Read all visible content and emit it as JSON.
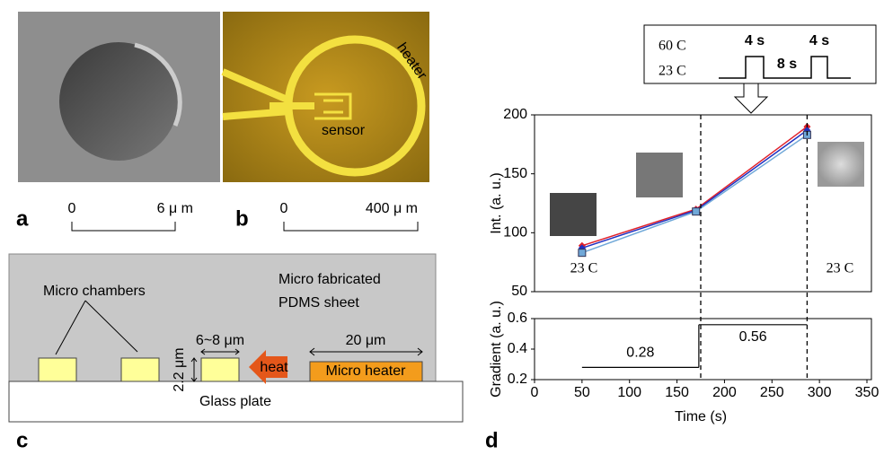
{
  "panel_a": {
    "label": "a",
    "scale": {
      "start": "0",
      "end": "6 μ m"
    }
  },
  "panel_b": {
    "label": "b",
    "scale": {
      "start": "0",
      "end": "400 μ m"
    },
    "heater": "heater",
    "sensor": "sensor"
  },
  "panel_c": {
    "label": "c",
    "sheet": [
      "Micro fabricated",
      "PDMS sheet"
    ],
    "chambers": "Micro chambers",
    "height": "2.2 μm",
    "width": "6~8 μm",
    "heat": "heat",
    "heater_width": "20 μm",
    "heater": "Micro heater",
    "glass": "Glass plate"
  },
  "panel_d": {
    "label": "d",
    "pulse": {
      "high": "60 C",
      "low": "23 C",
      "on1": "4 s",
      "off": "8 s",
      "on2": "4 s"
    }
  },
  "chart_data": [
    {
      "type": "line",
      "ylabel": "Int. (a. u.)",
      "x": [
        50,
        170,
        287
      ],
      "series": [
        {
          "color": "#e0202a",
          "values": [
            89,
            120,
            190
          ]
        },
        {
          "color": "#2030c0",
          "values": [
            87,
            119,
            187
          ]
        },
        {
          "color": "#70a8d8",
          "values": [
            83,
            118,
            183
          ]
        }
      ],
      "xlim": [
        0,
        350
      ],
      "ylim": [
        50,
        200
      ],
      "yticks": [
        50,
        100,
        150,
        200
      ],
      "vlines": [
        175,
        287
      ],
      "annotations": [
        "23 C",
        "23 C"
      ]
    },
    {
      "type": "step",
      "ylabel": "Gradient (a. u.)",
      "xlabel": "Time (s)",
      "segments": [
        {
          "x": [
            50,
            173
          ],
          "value": 0.28
        },
        {
          "x": [
            173,
            287
          ],
          "value": 0.56
        }
      ],
      "xlim": [
        0,
        350
      ],
      "xticks": [
        0,
        50,
        100,
        150,
        200,
        250,
        300,
        350
      ],
      "ylim": [
        0.2,
        0.6
      ],
      "yticks": [
        0.2,
        0.4,
        0.6
      ]
    }
  ]
}
